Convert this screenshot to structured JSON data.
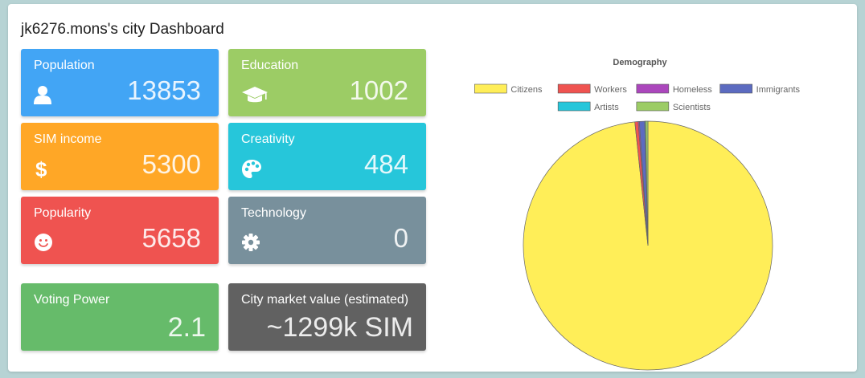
{
  "page": {
    "title": "jk6276.mons's city Dashboard"
  },
  "cards": [
    {
      "label": "Population",
      "value": "13853",
      "icon": "user-icon",
      "color": "#42a5f5"
    },
    {
      "label": "Education",
      "value": "1002",
      "icon": "graduation-cap-icon",
      "color": "#9ccc65"
    },
    {
      "label": "SIM income",
      "value": "5300",
      "icon": "dollar-icon",
      "color": "#ffa726"
    },
    {
      "label": "Creativity",
      "value": "484",
      "icon": "palette-icon",
      "color": "#26c6da"
    },
    {
      "label": "Popularity",
      "value": "5658",
      "icon": "smile-icon",
      "color": "#ef5350"
    },
    {
      "label": "Technology",
      "value": "0",
      "icon": "gear-icon",
      "color": "#78909c"
    },
    {
      "label": "Voting Power",
      "value": "2.1",
      "color": "#66bb6a"
    },
    {
      "label": "City market value (estimated)",
      "value": "~1299k SIM",
      "color": "#616161"
    }
  ],
  "chart_data": {
    "type": "pie",
    "title": "Demography",
    "legend_position": "top",
    "series": [
      {
        "name": "Citizens",
        "value": 13620,
        "color": "#ffee58"
      },
      {
        "name": "Workers",
        "value": 60,
        "color": "#ef5350"
      },
      {
        "name": "Homeless",
        "value": 20,
        "color": "#ab47bc"
      },
      {
        "name": "Immigrants",
        "value": 95,
        "color": "#5c6bc0"
      },
      {
        "name": "Artists",
        "value": 15,
        "color": "#26c6da"
      },
      {
        "name": "Scientists",
        "value": 43,
        "color": "#9ccc65"
      }
    ]
  }
}
